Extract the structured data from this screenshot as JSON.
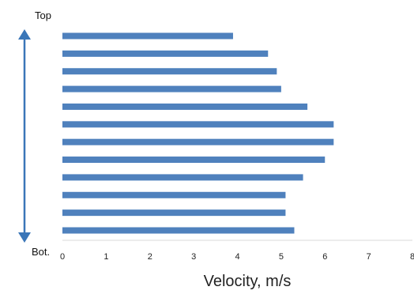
{
  "chart_data": {
    "type": "bar",
    "orientation": "horizontal",
    "title": "",
    "xlabel": "Velocity, m/s",
    "ylabel": "",
    "top_label": "Top",
    "bottom_label": "Bot.",
    "xlim": [
      0,
      8
    ],
    "xticks": [
      "0",
      "1",
      "2",
      "3",
      "4",
      "5",
      "6",
      "7",
      "8"
    ],
    "values_top_to_bottom": [
      3.9,
      4.7,
      4.9,
      5.0,
      5.6,
      6.2,
      6.2,
      6.0,
      5.5,
      5.1,
      5.1,
      5.3
    ],
    "grid": false,
    "colors": {
      "bar": "#4F81BD",
      "arrow": "#3A76B8",
      "axis": "#D9D9D9"
    }
  }
}
